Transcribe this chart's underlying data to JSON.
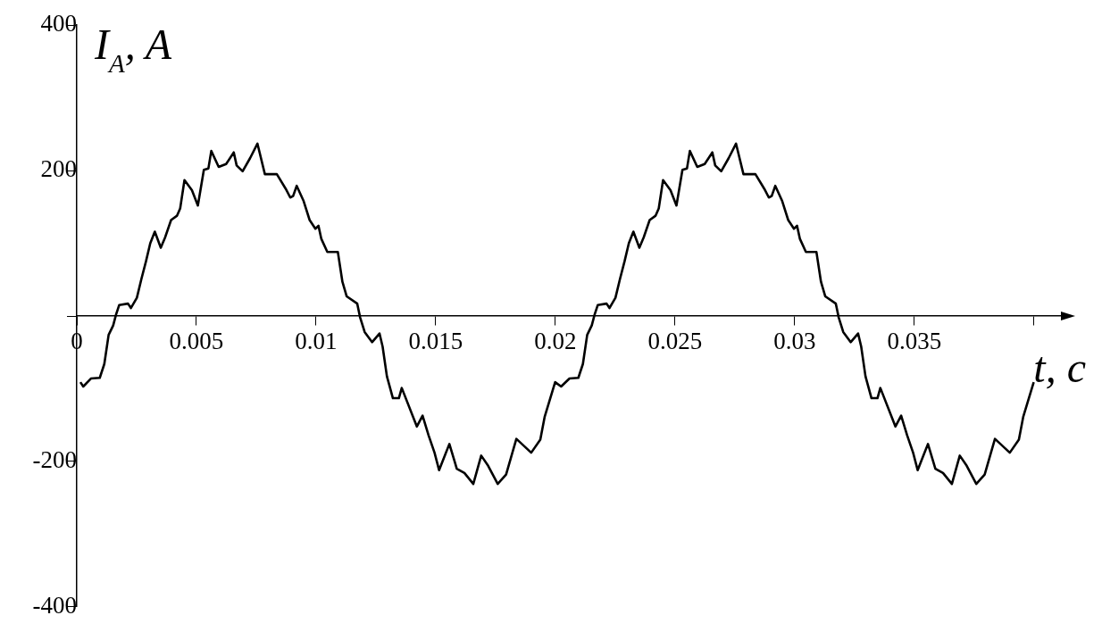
{
  "chart_data": {
    "type": "line",
    "xlabel": "t, c",
    "ylabel": "I$_{A}$, A",
    "xlim": [
      0,
      0.0415
    ],
    "ylim": [
      -400,
      400
    ],
    "xticks": [
      0,
      0.005,
      0.01,
      0.015,
      0.02,
      0.025,
      0.03,
      0.035,
      {
        "value": 0.04,
        "label": null
      }
    ],
    "yticks": [
      -400,
      -200,
      {
        "value": 0,
        "label": null
      },
      200,
      400
    ],
    "grid": false,
    "legend": false,
    "marker": "none",
    "line_style": "solid",
    "series": [
      {
        "color": "#000000",
        "x": [
          0.00015,
          0.00027,
          0.00059,
          0.00096,
          0.00115,
          0.00133,
          0.00152,
          0.00164,
          0.00177,
          0.00214,
          0.00226,
          0.00251,
          0.0027,
          0.00289,
          0.00307,
          0.00326,
          0.00351,
          0.00369,
          0.00394,
          0.00419,
          0.00432,
          0.0045,
          0.00481,
          0.00506,
          0.00531,
          0.0055,
          0.00562,
          0.00593,
          0.00624,
          0.00656,
          0.00668,
          0.00693,
          0.00724,
          0.00755,
          0.00786,
          0.00836,
          0.00873,
          0.00892,
          0.00904,
          0.00919,
          0.00948,
          0.00973,
          0.00997,
          0.0101,
          0.01022,
          0.01047,
          0.01091,
          0.0111,
          0.01128,
          0.01172,
          0.01184,
          0.01203,
          0.01234,
          0.01265,
          0.01278,
          0.01296,
          0.01321,
          0.01346,
          0.01358,
          0.01421,
          0.01445,
          0.0147,
          0.01495,
          0.01514,
          0.01557,
          0.01588,
          0.0162,
          0.01657,
          0.0169,
          0.01719,
          0.01759,
          0.01794,
          0.01837,
          0.01899,
          0.01937,
          0.01955,
          0.01999,
          0.02024,
          0.02059,
          0.02096,
          0.02115,
          0.02133,
          0.02152,
          0.02164,
          0.02177,
          0.02214,
          0.02226,
          0.02251,
          0.0227,
          0.02289,
          0.02307,
          0.02326,
          0.02351,
          0.02369,
          0.02394,
          0.02419,
          0.02432,
          0.0245,
          0.02481,
          0.02506,
          0.02531,
          0.0255,
          0.02562,
          0.02593,
          0.02624,
          0.02656,
          0.02668,
          0.02693,
          0.02724,
          0.02755,
          0.02786,
          0.02836,
          0.02873,
          0.02892,
          0.02904,
          0.02919,
          0.02948,
          0.02973,
          0.02997,
          0.0301,
          0.03022,
          0.03047,
          0.03091,
          0.0311,
          0.03128,
          0.03172,
          0.03184,
          0.03203,
          0.03234,
          0.03265,
          0.03278,
          0.03296,
          0.03321,
          0.03346,
          0.03358,
          0.03421,
          0.03445,
          0.0347,
          0.03495,
          0.03514,
          0.03557,
          0.03588,
          0.0362,
          0.03657,
          0.0369,
          0.03719,
          0.03759,
          0.03794,
          0.03837,
          0.03899,
          0.03937,
          0.03955,
          0.03999
        ],
        "values": [
          -91,
          -97,
          -86,
          -85,
          -66,
          -26,
          -13,
          2,
          15,
          17,
          11,
          25,
          51,
          75,
          100,
          116,
          94,
          108,
          132,
          138,
          148,
          187,
          173,
          152,
          201,
          203,
          227,
          205,
          209,
          225,
          207,
          199,
          217,
          237,
          195,
          195,
          175,
          163,
          165,
          179,
          158,
          132,
          120,
          124,
          106,
          88,
          88,
          47,
          27,
          17,
          -2,
          -22,
          -36,
          -24,
          -42,
          -83,
          -113,
          -113,
          -99,
          -152,
          -137,
          -164,
          -188,
          -212,
          -176,
          -210,
          -216,
          -231,
          -192,
          -206,
          -231,
          -218,
          -169,
          -188,
          -170,
          -139,
          -91,
          -97,
          -86,
          -85,
          -66,
          -26,
          -13,
          2,
          15,
          17,
          11,
          25,
          51,
          75,
          100,
          116,
          94,
          108,
          132,
          138,
          148,
          187,
          173,
          152,
          201,
          203,
          227,
          205,
          209,
          225,
          207,
          199,
          217,
          237,
          195,
          195,
          175,
          163,
          165,
          179,
          158,
          132,
          120,
          124,
          106,
          88,
          88,
          47,
          27,
          17,
          -2,
          -22,
          -36,
          -24,
          -42,
          -83,
          -113,
          -113,
          -99,
          -152,
          -137,
          -164,
          -188,
          -212,
          -176,
          -210,
          -216,
          -231,
          -192,
          -206,
          -231,
          -218,
          -169,
          -188,
          -170,
          -139,
          -91
        ]
      }
    ]
  }
}
